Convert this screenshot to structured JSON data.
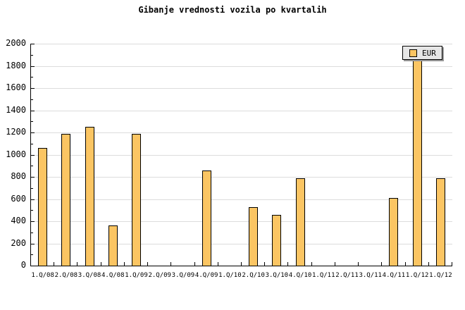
{
  "title": "Gibanje vrednosti vozila po kvartalih",
  "legend": {
    "label": "EUR"
  },
  "y_axis_labels": [
    "0",
    "200",
    "400",
    "600",
    "800",
    "1000",
    "1200",
    "1400",
    "1600",
    "1800",
    "2000"
  ],
  "colors": {
    "background": "#ffffff",
    "bar_fill": "#fbc563",
    "bar_border": "#000000",
    "grid_line": "#dcdcdc",
    "axis": "#000000",
    "legend_bg": "#e6e6e6",
    "legend_shadow": "#999999",
    "text": "#000000"
  },
  "chart_data": {
    "type": "bar",
    "title": "Gibanje vrednosti vozila po kvartalih",
    "series_name": "EUR",
    "categories": [
      "1.Q/08",
      "2.Q/08",
      "3.Q/08",
      "4.Q/08",
      "1.Q/09",
      "2.Q/09",
      "3.Q/09",
      "4.Q/09",
      "1.Q/10",
      "2.Q/10",
      "3.Q/10",
      "4.Q/10",
      "1.Q/11",
      "2.Q/11",
      "3.Q/11",
      "4.Q/11",
      "1.Q/12",
      "1.Q/12"
    ],
    "values": [
      1060,
      1190,
      1250,
      360,
      1190,
      0,
      0,
      860,
      0,
      530,
      460,
      790,
      0,
      0,
      0,
      610,
      1950,
      790
    ],
    "xlabel": "",
    "ylabel": "",
    "ylim": [
      0,
      2000
    ],
    "ytick_step": 200,
    "minor_ytick_step": 100,
    "grid": true,
    "legend_position": "top-right"
  }
}
